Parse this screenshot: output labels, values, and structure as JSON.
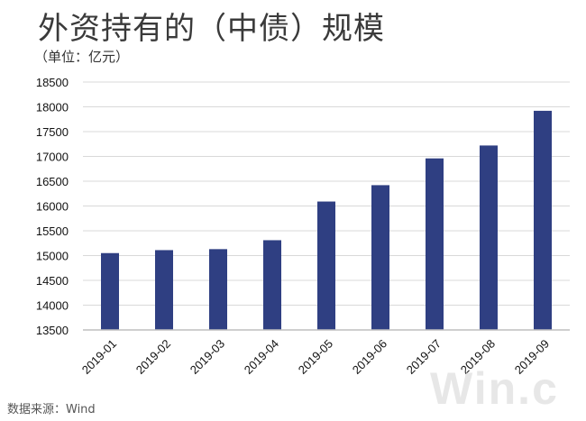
{
  "title": "外资持有的（中债）规模",
  "unit": "（单位：亿元）",
  "source": "数据来源：Wind",
  "watermark": "Win.c",
  "colors": {
    "bar": "#2f3f82",
    "grid": "#d9d9d9",
    "axis": "#bfbfbf"
  },
  "chart_data": {
    "type": "bar",
    "categories": [
      "2019-01",
      "2019-02",
      "2019-03",
      "2019-04",
      "2019-05",
      "2019-06",
      "2019-07",
      "2019-08",
      "2019-09"
    ],
    "values": [
      15050,
      15110,
      15130,
      15310,
      16090,
      16420,
      16960,
      17220,
      17920
    ],
    "title": "外资持有的（中债）规模",
    "ylabel": "（单位：亿元）",
    "ylim": [
      13500,
      18500
    ],
    "yticks": [
      13500,
      14000,
      14500,
      15000,
      15500,
      16000,
      16500,
      17000,
      17500,
      18000,
      18500
    ],
    "grid": true,
    "legend": "none"
  }
}
